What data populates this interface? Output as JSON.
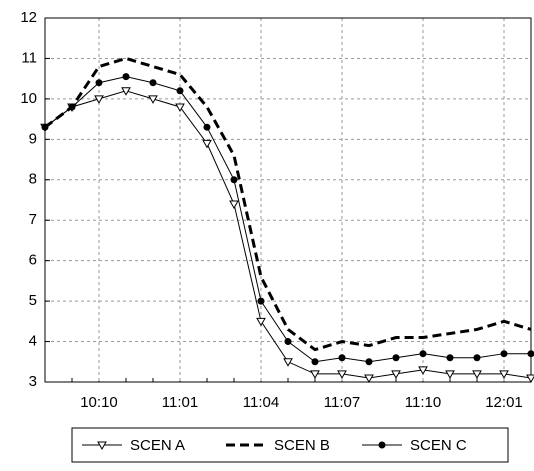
{
  "chart_data": {
    "type": "line",
    "categories": [
      null,
      null,
      "10:10",
      null,
      null,
      "11:01",
      null,
      null,
      "11:04",
      null,
      null,
      "11:07",
      null,
      null,
      "11:10",
      null,
      null,
      "12:01",
      null
    ],
    "series": [
      {
        "name": "SCEN A",
        "color": "#000000",
        "dash": "solid",
        "marker": "triangle-down",
        "values": [
          9.3,
          9.8,
          10.0,
          10.2,
          10.0,
          9.8,
          8.9,
          7.4,
          4.5,
          3.5,
          3.2,
          3.2,
          3.1,
          3.2,
          3.3,
          3.2,
          3.2,
          3.2,
          3.1
        ]
      },
      {
        "name": "SCEN B",
        "color": "#000000",
        "dash": "dashed",
        "marker": "none",
        "values": [
          9.3,
          9.8,
          10.8,
          11.0,
          10.8,
          10.6,
          9.8,
          8.6,
          5.6,
          4.3,
          3.8,
          4.0,
          3.9,
          4.1,
          4.1,
          4.2,
          4.3,
          4.5,
          4.3
        ]
      },
      {
        "name": "SCEN C",
        "color": "#000000",
        "dash": "solid",
        "marker": "circle",
        "values": [
          9.3,
          9.8,
          10.4,
          10.55,
          10.4,
          10.2,
          9.3,
          8.0,
          5.0,
          4.0,
          3.5,
          3.6,
          3.5,
          3.6,
          3.7,
          3.6,
          3.6,
          3.7,
          3.7
        ]
      }
    ],
    "ylim": [
      3,
      12
    ],
    "yticks": [
      3,
      4,
      5,
      6,
      7,
      8,
      9,
      10,
      11,
      12
    ],
    "grid": true,
    "legend": "bottom"
  }
}
